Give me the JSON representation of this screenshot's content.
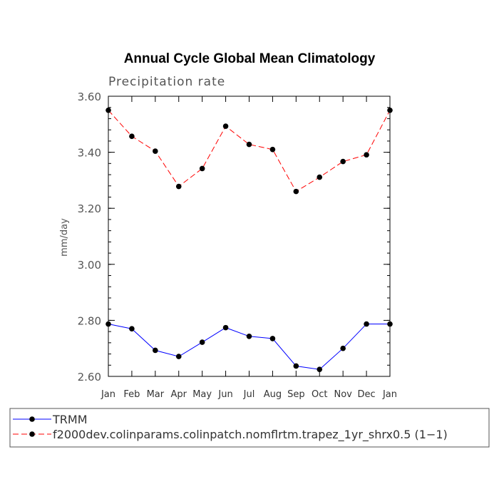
{
  "chart_data": {
    "type": "line",
    "title": "Annual Cycle Global Mean Climatology",
    "subtitle": "Precipitation rate",
    "xlabel": "",
    "ylabel": "mm/day",
    "categories": [
      "Jan",
      "Feb",
      "Mar",
      "Apr",
      "May",
      "Jun",
      "Jul",
      "Aug",
      "Sep",
      "Oct",
      "Nov",
      "Dec",
      "Jan"
    ],
    "ylim": [
      2.6,
      3.6
    ],
    "yticks": [
      2.6,
      2.8,
      3.0,
      3.2,
      3.4,
      3.6
    ],
    "ytick_labels": [
      "2.60",
      "2.80",
      "3.00",
      "3.20",
      "3.40",
      "3.60"
    ],
    "grid": false,
    "legend_position": "bottom",
    "series": [
      {
        "name": "TRMM",
        "color": "#0000ff",
        "line_style": "solid",
        "marker": "circle",
        "values": [
          2.787,
          2.77,
          2.693,
          2.671,
          2.722,
          2.774,
          2.743,
          2.735,
          2.637,
          2.625,
          2.7,
          2.787,
          2.787
        ]
      },
      {
        "name": "f2000dev.colinparams.colinpatch.nomflrtm.trapez_1yr_shrx0.5 (1−1)",
        "color": "#ff0000",
        "line_style": "dashed",
        "marker": "circle",
        "values": [
          3.55,
          3.457,
          3.404,
          3.278,
          3.342,
          3.493,
          3.428,
          3.41,
          3.26,
          3.311,
          3.367,
          3.391,
          3.55
        ]
      }
    ]
  }
}
